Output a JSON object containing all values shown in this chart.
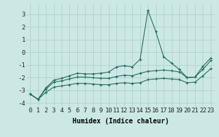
{
  "x": [
    0,
    1,
    2,
    3,
    4,
    5,
    6,
    7,
    8,
    9,
    10,
    11,
    12,
    13,
    14,
    15,
    16,
    17,
    18,
    19,
    20,
    21,
    22,
    23
  ],
  "line1": [
    -3.3,
    -3.7,
    -2.8,
    -2.2,
    -2.05,
    -1.85,
    -1.65,
    -1.7,
    -1.7,
    -1.65,
    -1.55,
    -1.15,
    -1.05,
    -1.15,
    -0.55,
    3.3,
    1.65,
    -0.35,
    -0.85,
    -1.35,
    -2.0,
    -1.95,
    -1.1,
    -0.45
  ],
  "line2": [
    -3.3,
    -3.7,
    -2.9,
    -2.35,
    -2.25,
    -2.1,
    -1.95,
    -1.95,
    -2.0,
    -2.05,
    -2.05,
    -1.9,
    -1.8,
    -1.85,
    -1.65,
    -1.5,
    -1.45,
    -1.4,
    -1.45,
    -1.55,
    -2.0,
    -1.95,
    -1.35,
    -0.65
  ],
  "line3": [
    -3.3,
    -3.7,
    -3.15,
    -2.75,
    -2.65,
    -2.55,
    -2.45,
    -2.45,
    -2.5,
    -2.55,
    -2.55,
    -2.45,
    -2.4,
    -2.45,
    -2.4,
    -2.15,
    -2.1,
    -2.05,
    -2.1,
    -2.15,
    -2.4,
    -2.35,
    -1.85,
    -1.3
  ],
  "color": "#1f6b5e",
  "bg_color": "#cce8e4",
  "grid_color": "#a8ccca",
  "xlabel": "Humidex (Indice chaleur)",
  "xlim": [
    -0.5,
    23.5
  ],
  "ylim": [
    -4.3,
    3.8
  ],
  "yticks": [
    -4,
    -3,
    -2,
    -1,
    0,
    1,
    2,
    3
  ],
  "xticks": [
    0,
    1,
    2,
    3,
    4,
    5,
    6,
    7,
    8,
    9,
    10,
    11,
    12,
    13,
    14,
    15,
    16,
    17,
    18,
    19,
    20,
    21,
    22,
    23
  ],
  "marker": "+",
  "markersize": 3,
  "linewidth": 0.8,
  "xlabel_fontsize": 7,
  "tick_fontsize": 6.5
}
